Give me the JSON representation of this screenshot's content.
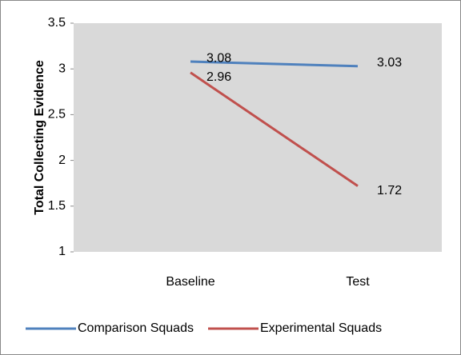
{
  "chart_data": {
    "type": "line",
    "y_label": "Total Collecting Evidence",
    "categories": [
      "Baseline",
      "Test"
    ],
    "series": [
      {
        "name": "Comparison Squads",
        "color": "#4f81bd",
        "values": [
          3.08,
          3.03
        ]
      },
      {
        "name": "Experimental Squads",
        "color": "#c0504d",
        "values": [
          2.96,
          1.72
        ]
      }
    ],
    "ylim": [
      1,
      3.5
    ],
    "yticks": [
      1,
      1.5,
      2,
      2.5,
      3,
      3.5
    ],
    "legend": "bottom",
    "plot_background": "#d9d9d9"
  }
}
